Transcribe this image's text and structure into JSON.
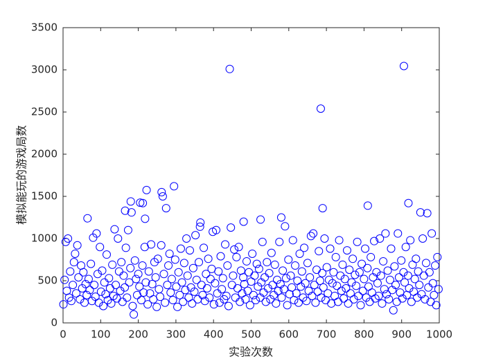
{
  "chart_data": {
    "type": "scatter",
    "xlabel": "实验次数",
    "ylabel": "模拟能玩的游戏局数",
    "color": "#0000ff",
    "xlim": [
      0,
      1000
    ],
    "xticks": [
      0,
      100,
      200,
      300,
      400,
      500,
      600,
      700,
      800,
      900,
      1000
    ],
    "ylim": [
      0,
      3500
    ],
    "yticks": [
      0,
      500,
      1000,
      1500,
      2000,
      2500,
      3000,
      3500
    ],
    "grid": false,
    "x": [
      1,
      4,
      7,
      10,
      13,
      16,
      19,
      22,
      26,
      29,
      32,
      35,
      38,
      41,
      45,
      48,
      51,
      54,
      57,
      60,
      63,
      65,
      68,
      71,
      74,
      77,
      80,
      83,
      86,
      89,
      92,
      95,
      98,
      101,
      104,
      107,
      110,
      113,
      116,
      119,
      122,
      125,
      128,
      131,
      134,
      137,
      140,
      143,
      146,
      149,
      152,
      155,
      158,
      161,
      164,
      165,
      167,
      170,
      173,
      176,
      179,
      180,
      182,
      185,
      188,
      191,
      194,
      197,
      200,
      203,
      205,
      208,
      211,
      212,
      214,
      217,
      218,
      220,
      222,
      225,
      228,
      231,
      234,
      237,
      240,
      243,
      246,
      249,
      252,
      255,
      258,
      261,
      262,
      265,
      268,
      271,
      274,
      277,
      280,
      283,
      286,
      289,
      292,
      295,
      298,
      301,
      304,
      307,
      310,
      313,
      316,
      319,
      322,
      325,
      328,
      331,
      334,
      337,
      340,
      343,
      346,
      349,
      352,
      355,
      358,
      361,
      364,
      365,
      368,
      371,
      374,
      377,
      380,
      383,
      386,
      389,
      392,
      395,
      398,
      401,
      404,
      407,
      410,
      413,
      416,
      419,
      422,
      425,
      428,
      431,
      434,
      437,
      440,
      443,
      446,
      449,
      452,
      455,
      458,
      461,
      464,
      467,
      470,
      473,
      476,
      479,
      480,
      482,
      485,
      488,
      491,
      494,
      497,
      500,
      503,
      506,
      509,
      512,
      515,
      518,
      521,
      524,
      525,
      527,
      530,
      533,
      536,
      539,
      542,
      545,
      548,
      551,
      554,
      557,
      560,
      563,
      566,
      569,
      572,
      575,
      578,
      580,
      581,
      584,
      587,
      590,
      593,
      596,
      599,
      602,
      605,
      608,
      611,
      614,
      617,
      620,
      623,
      626,
      629,
      632,
      635,
      638,
      641,
      644,
      647,
      650,
      653,
      656,
      659,
      662,
      665,
      668,
      671,
      674,
      677,
      680,
      683,
      685,
      686,
      689,
      690,
      692,
      695,
      698,
      701,
      704,
      707,
      710,
      713,
      716,
      719,
      722,
      725,
      728,
      731,
      734,
      737,
      740,
      743,
      746,
      749,
      752,
      755,
      758,
      761,
      764,
      767,
      770,
      773,
      776,
      779,
      782,
      785,
      788,
      791,
      794,
      797,
      800,
      803,
      806,
      809,
      810,
      812,
      815,
      818,
      821,
      824,
      827,
      830,
      833,
      836,
      839,
      842,
      845,
      848,
      851,
      854,
      857,
      860,
      863,
      866,
      869,
      872,
      875,
      878,
      881,
      884,
      887,
      890,
      893,
      896,
      899,
      902,
      905,
      906,
      908,
      911,
      914,
      917,
      918,
      920,
      923,
      926,
      929,
      932,
      935,
      938,
      941,
      944,
      947,
      950,
      953,
      956,
      959,
      962,
      965,
      968,
      971,
      974,
      977,
      980,
      983,
      986,
      989,
      992,
      995,
      998
    ],
    "values": [
      220,
      510,
      960,
      380,
      1000,
      300,
      610,
      260,
      450,
      720,
      820,
      350,
      920,
      540,
      280,
      680,
      410,
      600,
      240,
      460,
      330,
      1240,
      520,
      390,
      700,
      260,
      1010,
      450,
      310,
      1060,
      580,
      240,
      900,
      370,
      620,
      200,
      480,
      340,
      810,
      270,
      530,
      410,
      230,
      690,
      320,
      1110,
      450,
      290,
      1000,
      610,
      380,
      720,
      250,
      560,
      420,
      1330,
      890,
      300,
      1100,
      480,
      650,
      1440,
      1310,
      200,
      100,
      740,
      520,
      330,
      580,
      430,
      1425,
      270,
      680,
      1420,
      360,
      900,
      1235,
      480,
      1575,
      220,
      610,
      350,
      930,
      460,
      280,
      720,
      540,
      190,
      760,
      400,
      310,
      920,
      1550,
      1500,
      580,
      240,
      1360,
      450,
      680,
      820,
      360,
      520,
      270,
      1620,
      750,
      430,
      190,
      600,
      330,
      880,
      480,
      250,
      710,
      390,
      1000,
      560,
      300,
      860,
      420,
      230,
      650,
      370,
      1040,
      510,
      280,
      720,
      1140,
      1190,
      450,
      330,
      890,
      260,
      580,
      410,
      760,
      300,
      520,
      640,
      1080,
      220,
      470,
      1100,
      350,
      610,
      240,
      790,
      400,
      530,
      280,
      930,
      320,
      680,
      200,
      3010,
      1130,
      450,
      560,
      870,
      300,
      780,
      410,
      900,
      250,
      620,
      350,
      540,
      1200,
      460,
      280,
      730,
      380,
      600,
      210,
      490,
      820,
      330,
      560,
      270,
      700,
      430,
      640,
      300,
      1225,
      480,
      960,
      360,
      540,
      250,
      720,
      410,
      590,
      280,
      830,
      450,
      330,
      690,
      230,
      510,
      380,
      960,
      460,
      1250,
      300,
      620,
      400,
      1145,
      530,
      210,
      750,
      340,
      560,
      420,
      980,
      270,
      680,
      350,
      500,
      240,
      820,
      430,
      610,
      300,
      890,
      470,
      260,
      710,
      380,
      540,
      1030,
      320,
      1060,
      450,
      240,
      630,
      370,
      850,
      500,
      2540,
      300,
      590,
      1360,
      420,
      1000,
      270,
      660,
      350,
      510,
      880,
      230,
      470,
      600,
      320,
      780,
      440,
      250,
      980,
      560,
      380,
      690,
      290,
      520,
      410,
      860,
      230,
      630,
      350,
      480,
      760,
      280,
      570,
      440,
      960,
      320,
      600,
      210,
      700,
      380,
      520,
      880,
      300,
      650,
      1390,
      430,
      250,
      780,
      360,
      540,
      970,
      290,
      600,
      470,
      320,
      1000,
      560,
      230,
      730,
      400,
      1060,
      340,
      620,
      280,
      510,
      880,
      390,
      150,
      670,
      450,
      250,
      1060,
      540,
      360,
      740,
      290,
      600,
      3045,
      480,
      900,
      330,
      560,
      1420,
      410,
      980,
      250,
      690,
      370,
      520,
      760,
      300,
      610,
      450,
      1310,
      340,
      1000,
      560,
      280,
      710,
      1300,
      420,
      600,
      250,
      1060,
      470,
      330,
      680,
      210,
      780,
      400
    ]
  }
}
